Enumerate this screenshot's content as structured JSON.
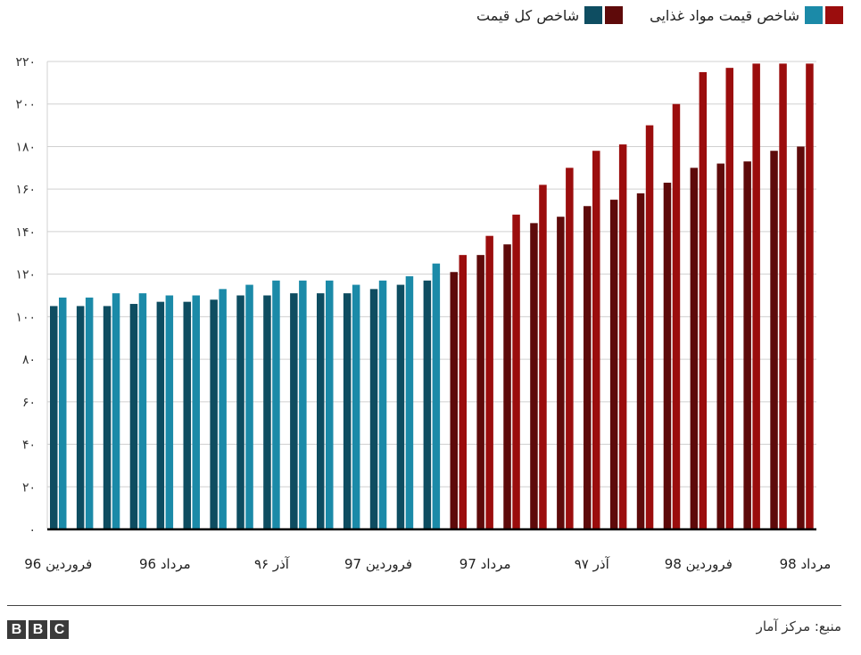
{
  "legend": {
    "food_label": "شاخص قیمت مواد غذایی",
    "total_label": "شاخص کل قیمت"
  },
  "colors": {
    "food_before": "#1b8aa8",
    "total_before": "#0e4d61",
    "food_after": "#9b0d0d",
    "total_after": "#5e0a0a",
    "grid": "#d0d0d0",
    "axis": "#000000"
  },
  "source": "منبع: مرکز آمار",
  "logo": {
    "letters": [
      "B",
      "B",
      "C"
    ]
  },
  "chart_data": {
    "type": "bar",
    "title": "",
    "xlabel": "",
    "ylabel": "",
    "ylim": [
      0,
      220
    ],
    "yticks": [
      "۰",
      "۲۰",
      "۴۰",
      "۶۰",
      "۸۰",
      "۱۰۰",
      "۱۲۰",
      "۱۴۰",
      "۱۶۰",
      "۱۸۰",
      "۲۰۰",
      "۲۲۰"
    ],
    "yticks_values": [
      0,
      20,
      40,
      60,
      80,
      100,
      120,
      140,
      160,
      180,
      200,
      220
    ],
    "grid": true,
    "legend_position": "top-right",
    "x_labels": [
      {
        "text": "فروردین 96",
        "index": 0
      },
      {
        "text": "مرداد 96",
        "index": 4
      },
      {
        "text": "آذر ۹۶",
        "index": 8
      },
      {
        "text": "فروردین 97",
        "index": 12
      },
      {
        "text": "مرداد 97",
        "index": 16
      },
      {
        "text": "آذر ۹۷",
        "index": 20
      },
      {
        "text": "فروردین 98",
        "index": 24
      },
      {
        "text": "مرداد 98",
        "index": 28
      }
    ],
    "color_switch_index": 15,
    "series": [
      {
        "name": "شاخص کل قیمت",
        "values": [
          105,
          105,
          105,
          106,
          107,
          107,
          108,
          110,
          110,
          111,
          111,
          111,
          113,
          115,
          117,
          121,
          129,
          134,
          144,
          147,
          152,
          155,
          158,
          163,
          170,
          172,
          173,
          178,
          180
        ]
      },
      {
        "name": "شاخص قیمت مواد غذایی",
        "values": [
          109,
          109,
          111,
          111,
          110,
          110,
          113,
          115,
          117,
          117,
          117,
          115,
          117,
          119,
          125,
          129,
          138,
          148,
          162,
          170,
          178,
          181,
          190,
          200,
          215,
          217,
          219,
          219,
          219
        ]
      }
    ]
  }
}
